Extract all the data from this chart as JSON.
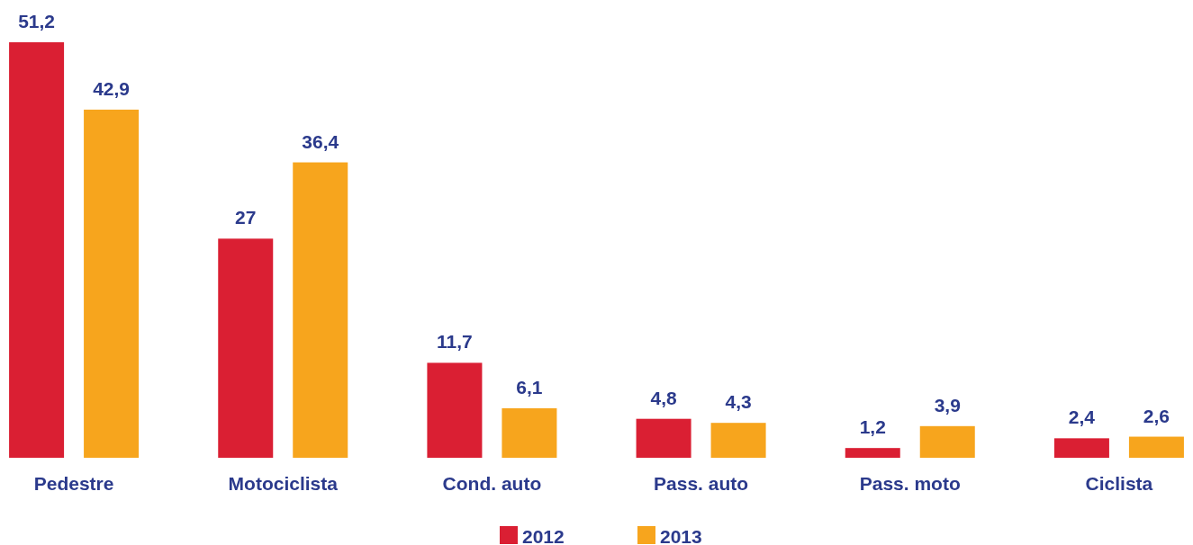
{
  "chart_data": {
    "type": "bar",
    "categories": [
      "Pedestre",
      "Motociclista",
      "Cond. auto",
      "Pass. auto",
      "Pass. moto",
      "Ciclista"
    ],
    "series": [
      {
        "name": "2012",
        "color": "#da1f33",
        "values": [
          51.2,
          27,
          11.7,
          4.8,
          1.2,
          2.4
        ],
        "value_labels": [
          "51,2",
          "27",
          "11,7",
          "4,8",
          "1,2",
          "2,4"
        ]
      },
      {
        "name": "2013",
        "color": "#f7a51d",
        "values": [
          42.9,
          36.4,
          6.1,
          4.3,
          3.9,
          2.6
        ],
        "value_labels": [
          "42,9",
          "36,4",
          "6,1",
          "4,3",
          "3,9",
          "2,6"
        ]
      }
    ],
    "legend": "bottom",
    "grid": false
  }
}
